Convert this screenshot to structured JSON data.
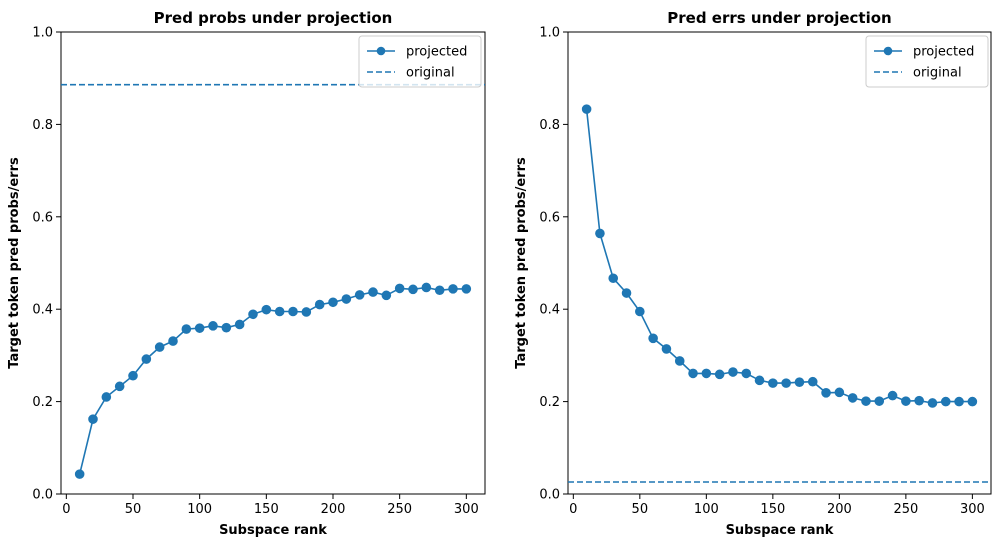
{
  "chart_data": [
    {
      "type": "line",
      "title": "Pred probs under projection",
      "xlabel": "Subspace rank",
      "ylabel": "Target token pred probs/errs",
      "xlim": [
        -4,
        314
      ],
      "ylim": [
        0,
        1
      ],
      "xticks": [
        0,
        50,
        100,
        150,
        200,
        250,
        300
      ],
      "yticks": [
        0.0,
        0.2,
        0.4,
        0.6,
        0.8,
        1.0
      ],
      "grid": false,
      "legend_position": "top-right",
      "color": "#1f77b4",
      "x": [
        10,
        20,
        30,
        40,
        50,
        60,
        70,
        80,
        90,
        100,
        110,
        120,
        130,
        140,
        150,
        160,
        170,
        180,
        190,
        200,
        210,
        220,
        230,
        240,
        250,
        260,
        270,
        280,
        290,
        300
      ],
      "series": [
        {
          "name": "projected",
          "style": "solid-line-circle-markers",
          "values": [
            0.043,
            0.162,
            0.21,
            0.233,
            0.256,
            0.292,
            0.318,
            0.331,
            0.357,
            0.359,
            0.364,
            0.36,
            0.367,
            0.389,
            0.399,
            0.395,
            0.395,
            0.394,
            0.41,
            0.415,
            0.422,
            0.431,
            0.437,
            0.43,
            0.445,
            0.443,
            0.447,
            0.441,
            0.444,
            0.444
          ]
        }
      ],
      "reference_lines": [
        {
          "name": "original",
          "style": "dashed-horizontal",
          "y": 0.886
        }
      ]
    },
    {
      "type": "line",
      "title": "Pred errs under projection",
      "xlabel": "Subspace rank",
      "ylabel": "Target token pred probs/errs",
      "xlim": [
        -4,
        314
      ],
      "ylim": [
        0,
        1
      ],
      "xticks": [
        0,
        50,
        100,
        150,
        200,
        250,
        300
      ],
      "yticks": [
        0.0,
        0.2,
        0.4,
        0.6,
        0.8,
        1.0
      ],
      "grid": false,
      "legend_position": "top-right",
      "color": "#1f77b4",
      "x": [
        10,
        20,
        30,
        40,
        50,
        60,
        70,
        80,
        90,
        100,
        110,
        120,
        130,
        140,
        150,
        160,
        170,
        180,
        190,
        200,
        210,
        220,
        230,
        240,
        250,
        260,
        270,
        280,
        290,
        300
      ],
      "series": [
        {
          "name": "projected",
          "style": "solid-line-circle-markers",
          "values": [
            0.833,
            0.564,
            0.467,
            0.435,
            0.395,
            0.337,
            0.314,
            0.288,
            0.261,
            0.261,
            0.259,
            0.264,
            0.261,
            0.246,
            0.24,
            0.24,
            0.242,
            0.243,
            0.219,
            0.22,
            0.208,
            0.201,
            0.201,
            0.213,
            0.201,
            0.202,
            0.197,
            0.2,
            0.2,
            0.2
          ]
        }
      ],
      "reference_lines": [
        {
          "name": "original",
          "style": "dashed-horizontal",
          "y": 0.026
        }
      ]
    }
  ]
}
